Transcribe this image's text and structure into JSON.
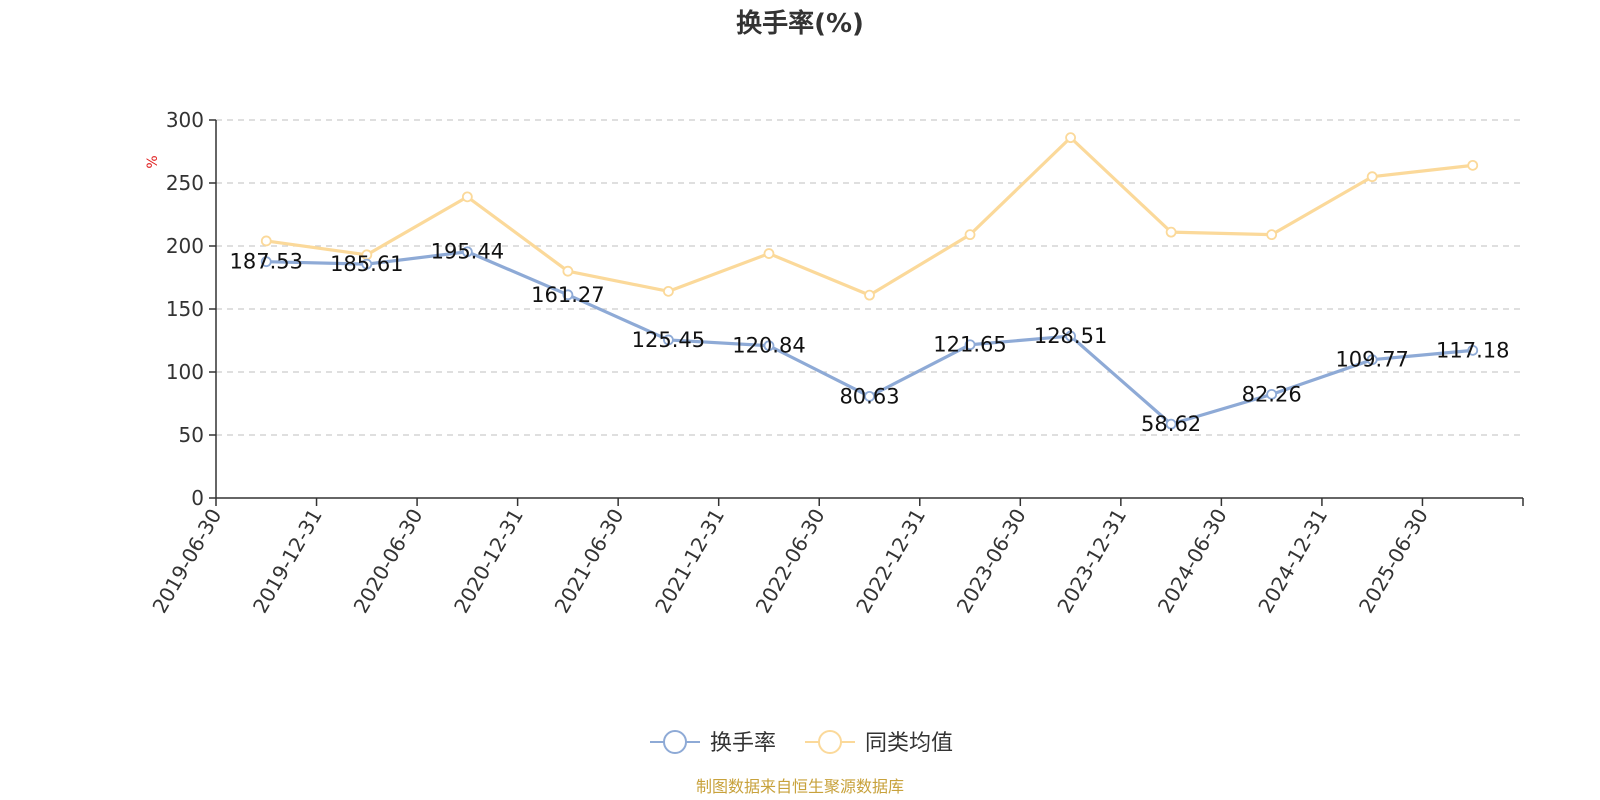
{
  "chart_data": {
    "type": "line",
    "title": "换手率(%)",
    "ylabel": "%",
    "ylim": [
      0,
      300
    ],
    "yticks": [
      0,
      50,
      100,
      150,
      200,
      250,
      300
    ],
    "grid": true,
    "legend_position": "bottom-center",
    "categories": [
      "2019-06-30",
      "2019-12-31",
      "2020-06-30",
      "2020-12-31",
      "2021-06-30",
      "2021-12-31",
      "2022-06-30",
      "2022-12-31",
      "2023-06-30",
      "2023-12-31",
      "2024-06-30",
      "2024-12-31",
      "2025-06-30"
    ],
    "series": [
      {
        "name": "换手率",
        "color": "#8eaad6",
        "show_labels": true,
        "values": [
          187.53,
          185.61,
          195.44,
          161.27,
          125.45,
          120.84,
          80.63,
          121.65,
          128.51,
          58.62,
          82.26,
          109.77,
          117.18
        ],
        "labels": [
          "187.53",
          "185.61",
          "195.44",
          "161.27",
          "125.45",
          "120.84",
          "80.63",
          "121.65",
          "128.51",
          "58.62",
          "82.26",
          "109.77",
          "117.18"
        ]
      },
      {
        "name": "同类均值",
        "color": "#fbd99a",
        "show_labels": false,
        "values": [
          204,
          193,
          239,
          180,
          164,
          194,
          161,
          209,
          286,
          211,
          209,
          255,
          264
        ]
      }
    ]
  },
  "source": "制图数据来自恒生聚源数据库",
  "colors": {
    "source_text": "#c8a23c",
    "unit_text": "#e02020",
    "axis": "#333333",
    "grid": "#cccccc"
  }
}
